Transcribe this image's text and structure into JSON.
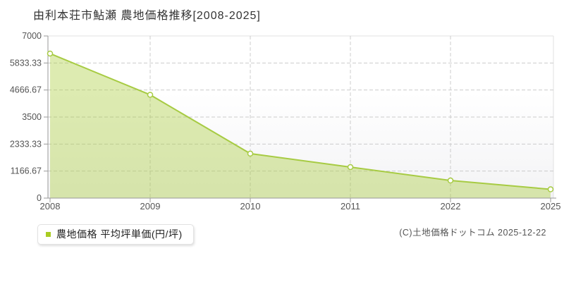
{
  "page": {
    "title": "由利本荘市鮎瀬 農地価格推移[2008-2025]",
    "legend_label": "農地価格 平均坪単価(円/坪)",
    "copyright": "(C)土地価格ドットコム 2025-12-22"
  },
  "chart_data": {
    "type": "area",
    "title": "由利本荘市鮎瀬 農地価格推移[2008-2025]",
    "categories": [
      "2008",
      "2009",
      "2010",
      "2011",
      "2022",
      "2025"
    ],
    "series": [
      {
        "name": "農地価格 平均坪単価(円/坪)",
        "values": [
          6240,
          4460,
          1920,
          1340,
          760,
          380
        ]
      }
    ],
    "xlabel": "",
    "ylabel": "",
    "ylim": [
      0,
      7000
    ],
    "y_ticks": [
      0,
      1166.67,
      2333.33,
      3500,
      4666.67,
      5833.33,
      7000
    ],
    "y_tick_labels": [
      "0",
      "1166.67",
      "2333.33",
      "3500",
      "4666.67",
      "5833.33",
      "7000"
    ],
    "grid": true,
    "grid_style": "dashed",
    "legend_position": "bottom-left",
    "colors": {
      "line": "#a7cb43",
      "fill": "rgba(170,205,60,0.40)",
      "marker_fill": "#ffffff",
      "marker_stroke": "#a7cb43",
      "legend_marker": "#a9cc22",
      "grid": "#cccccc",
      "axis": "#999999",
      "plot_border": "#e0e0e2",
      "tick_label": "#555555",
      "plot_bg_top": "#ffffff",
      "plot_bg_bottom": "#f3f3f5"
    }
  }
}
